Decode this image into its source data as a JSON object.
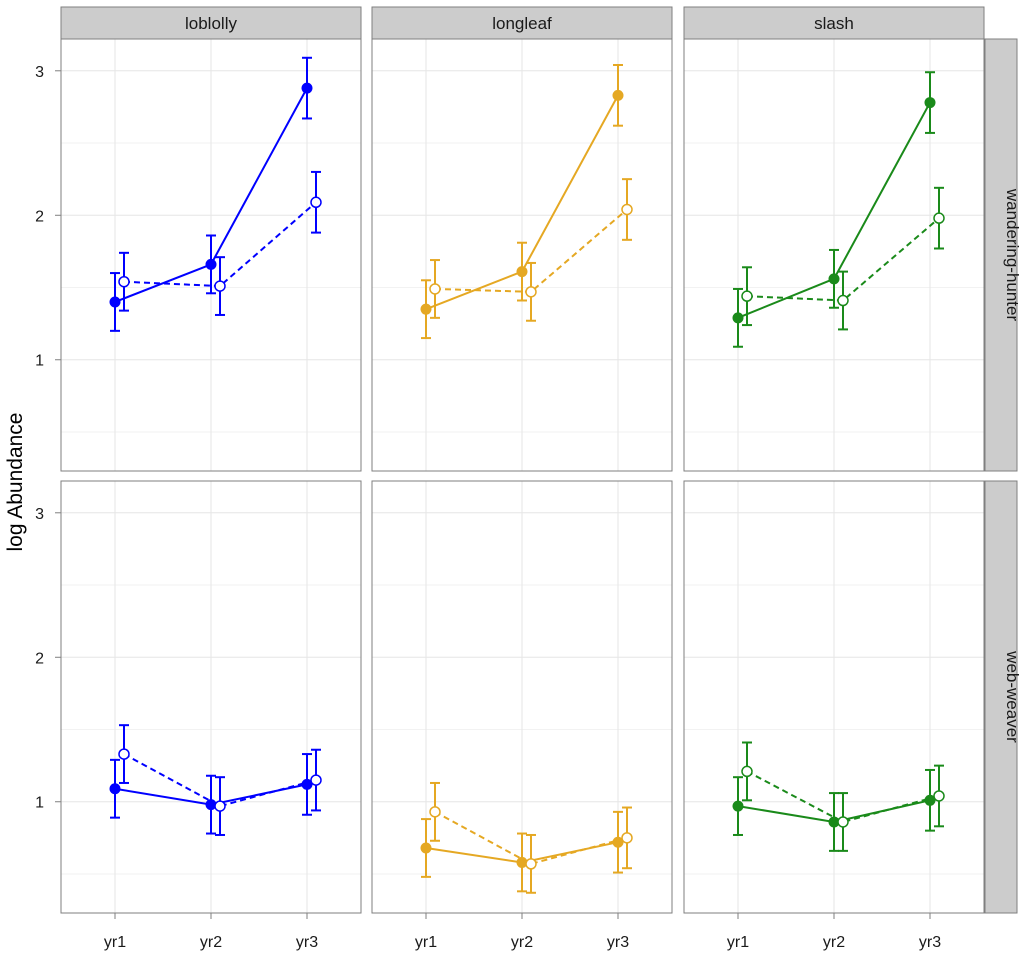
{
  "chart_data": {
    "type": "line",
    "title": "",
    "xlabel": "",
    "ylabel": "log Abundance",
    "categories": [
      "yr1",
      "yr2",
      "yr3"
    ],
    "ylim": [
      0.23,
      3.22
    ],
    "yticks": [
      1,
      2,
      3
    ],
    "grid": true,
    "columns": [
      "loblolly",
      "longleaf",
      "slash"
    ],
    "rows": [
      "wandering-hunter",
      "web-weaver"
    ],
    "colors": {
      "loblolly": "#0000ff",
      "longleaf": "#e5a823",
      "slash": "#1a8a1a"
    },
    "panels": [
      {
        "column": "loblolly",
        "row": "wandering-hunter",
        "series": [
          {
            "name": "solid",
            "style": "solid",
            "marker": "filled",
            "values": [
              1.4,
              1.66,
              2.88
            ],
            "err": [
              0.2,
              0.2,
              0.21
            ]
          },
          {
            "name": "dashed",
            "style": "dashed",
            "marker": "open",
            "values": [
              1.54,
              1.51,
              2.09
            ],
            "err": [
              0.2,
              0.2,
              0.21
            ]
          }
        ]
      },
      {
        "column": "longleaf",
        "row": "wandering-hunter",
        "series": [
          {
            "name": "solid",
            "style": "solid",
            "marker": "filled",
            "values": [
              1.35,
              1.61,
              2.83
            ],
            "err": [
              0.2,
              0.2,
              0.21
            ]
          },
          {
            "name": "dashed",
            "style": "dashed",
            "marker": "open",
            "values": [
              1.49,
              1.47,
              2.04
            ],
            "err": [
              0.2,
              0.2,
              0.21
            ]
          }
        ]
      },
      {
        "column": "slash",
        "row": "wandering-hunter",
        "series": [
          {
            "name": "solid",
            "style": "solid",
            "marker": "filled",
            "values": [
              1.29,
              1.56,
              2.78
            ],
            "err": [
              0.2,
              0.2,
              0.21
            ]
          },
          {
            "name": "dashed",
            "style": "dashed",
            "marker": "open",
            "values": [
              1.44,
              1.41,
              1.98
            ],
            "err": [
              0.2,
              0.2,
              0.21
            ]
          }
        ]
      },
      {
        "column": "loblolly",
        "row": "web-weaver",
        "series": [
          {
            "name": "solid",
            "style": "solid",
            "marker": "filled",
            "values": [
              1.09,
              0.98,
              1.12
            ],
            "err": [
              0.2,
              0.2,
              0.21
            ]
          },
          {
            "name": "dashed",
            "style": "dashed",
            "marker": "open",
            "values": [
              1.33,
              0.97,
              1.15
            ],
            "err": [
              0.2,
              0.2,
              0.21
            ]
          }
        ]
      },
      {
        "column": "longleaf",
        "row": "web-weaver",
        "series": [
          {
            "name": "solid",
            "style": "solid",
            "marker": "filled",
            "values": [
              0.68,
              0.58,
              0.72
            ],
            "err": [
              0.2,
              0.2,
              0.21
            ]
          },
          {
            "name": "dashed",
            "style": "dashed",
            "marker": "open",
            "values": [
              0.93,
              0.57,
              0.75
            ],
            "err": [
              0.2,
              0.2,
              0.21
            ]
          }
        ]
      },
      {
        "column": "slash",
        "row": "web-weaver",
        "series": [
          {
            "name": "solid",
            "style": "solid",
            "marker": "filled",
            "values": [
              0.97,
              0.86,
              1.01
            ],
            "err": [
              0.2,
              0.2,
              0.21
            ]
          },
          {
            "name": "dashed",
            "style": "dashed",
            "marker": "open",
            "values": [
              1.21,
              0.86,
              1.04
            ],
            "err": [
              0.2,
              0.2,
              0.21
            ]
          }
        ]
      }
    ]
  }
}
